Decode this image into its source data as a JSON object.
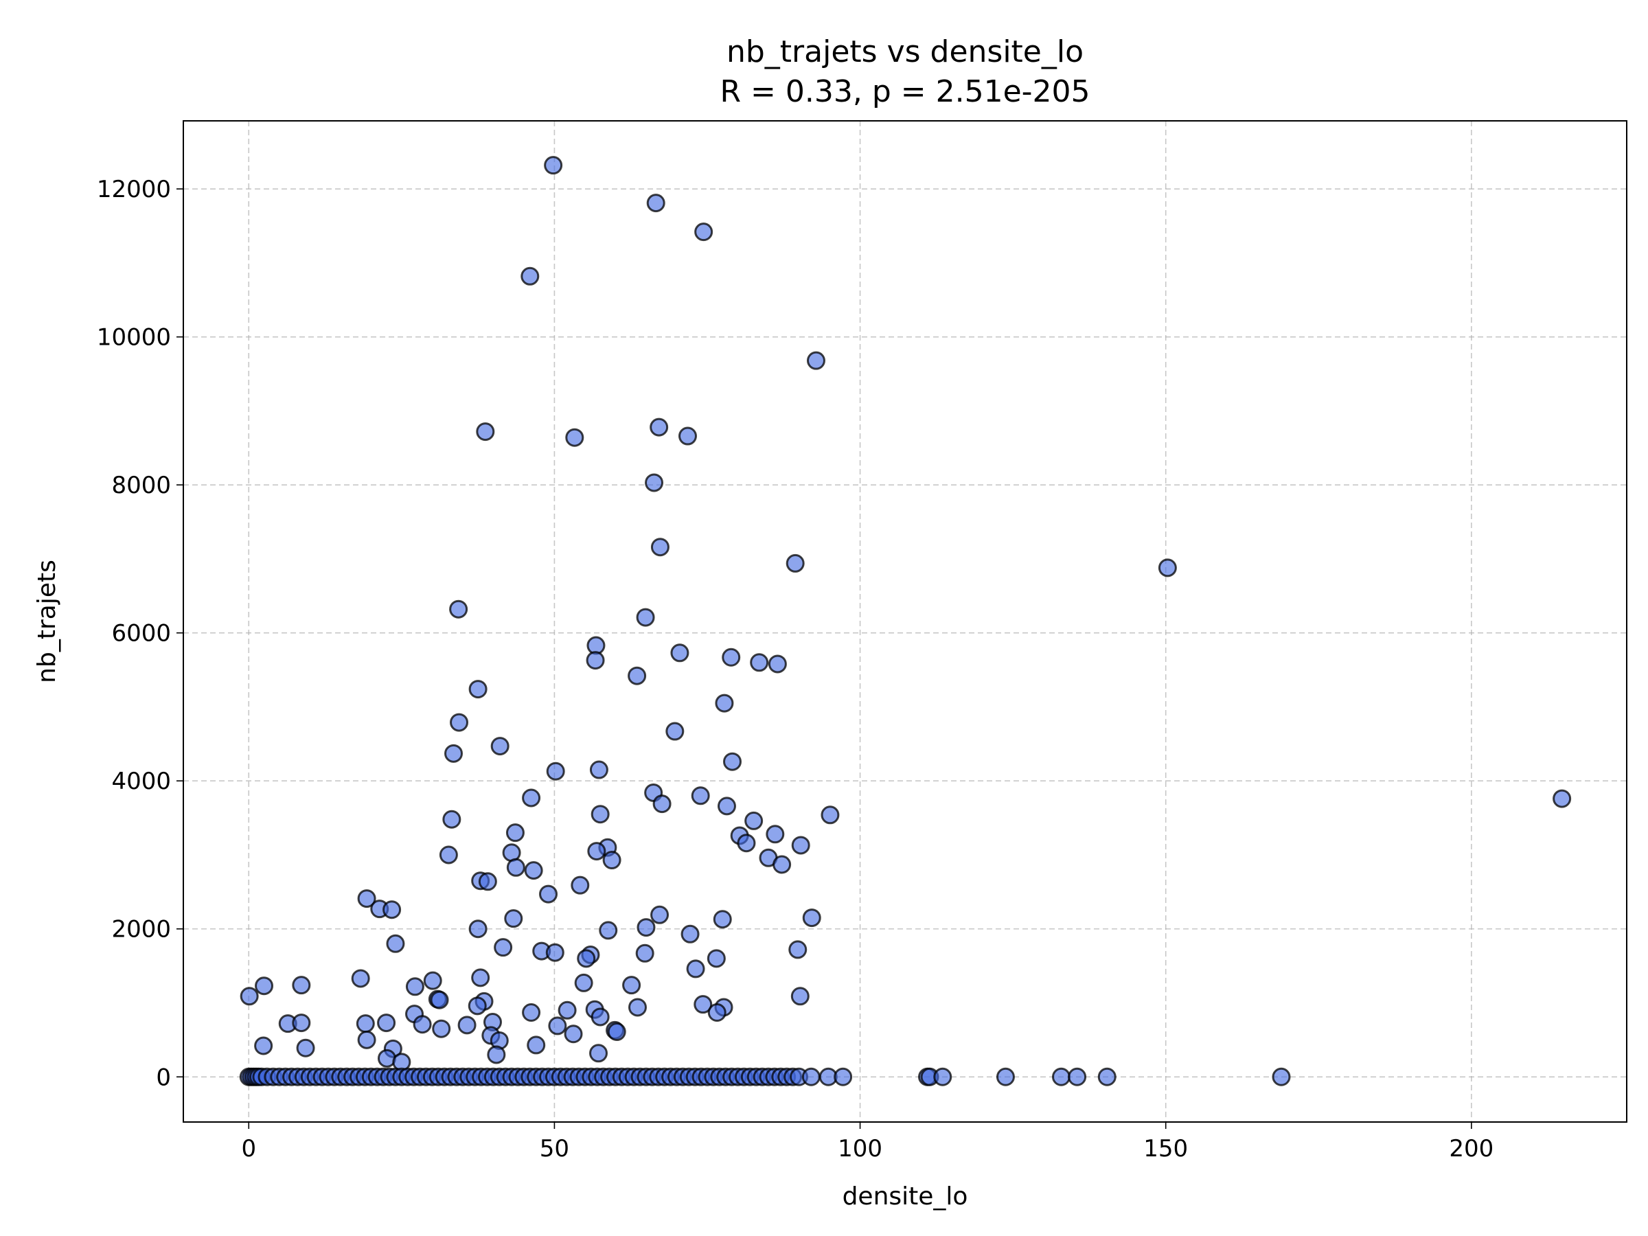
{
  "chart_data": {
    "type": "scatter",
    "title": "nb_trajets vs densite_lo",
    "subtitle": "R = 0.33, p = 2.51e-205",
    "xlabel": "densite_lo",
    "ylabel": "nb_trajets",
    "xlim": [
      -10.7,
      225.4
    ],
    "ylim": [
      -610,
      12920
    ],
    "xticks": [
      0,
      50,
      100,
      150,
      200
    ],
    "yticks": [
      0,
      2000,
      4000,
      6000,
      8000,
      10000,
      12000
    ],
    "grid": true,
    "legend": "none",
    "colors": {
      "fill": "#4169e1",
      "fill_opacity": 0.6,
      "edge": "#000000"
    },
    "points": [
      [
        49.8,
        12320
      ],
      [
        66.6,
        11810
      ],
      [
        74.4,
        11420
      ],
      [
        46.0,
        10820
      ],
      [
        92.8,
        9680
      ],
      [
        38.7,
        8720
      ],
      [
        53.3,
        8640
      ],
      [
        67.1,
        8780
      ],
      [
        71.8,
        8660
      ],
      [
        66.3,
        8030
      ],
      [
        67.3,
        7160
      ],
      [
        89.4,
        6940
      ],
      [
        150.3,
        6880
      ],
      [
        34.3,
        6320
      ],
      [
        64.9,
        6210
      ],
      [
        56.8,
        5830
      ],
      [
        70.5,
        5730
      ],
      [
        56.7,
        5630
      ],
      [
        78.9,
        5670
      ],
      [
        83.5,
        5600
      ],
      [
        86.5,
        5580
      ],
      [
        63.5,
        5420
      ],
      [
        37.5,
        5240
      ],
      [
        77.8,
        5050
      ],
      [
        34.4,
        4790
      ],
      [
        69.7,
        4670
      ],
      [
        41.1,
        4470
      ],
      [
        33.5,
        4370
      ],
      [
        57.3,
        4150
      ],
      [
        50.2,
        4130
      ],
      [
        79.1,
        4260
      ],
      [
        66.2,
        3840
      ],
      [
        73.9,
        3800
      ],
      [
        46.2,
        3770
      ],
      [
        214.8,
        3760
      ],
      [
        67.6,
        3690
      ],
      [
        78.2,
        3660
      ],
      [
        57.5,
        3550
      ],
      [
        95.1,
        3540
      ],
      [
        33.2,
        3480
      ],
      [
        82.6,
        3460
      ],
      [
        43.6,
        3300
      ],
      [
        86.1,
        3280
      ],
      [
        80.3,
        3260
      ],
      [
        81.4,
        3160
      ],
      [
        90.3,
        3130
      ],
      [
        58.7,
        3100
      ],
      [
        56.9,
        3050
      ],
      [
        43.0,
        3030
      ],
      [
        32.7,
        3000
      ],
      [
        85.0,
        2960
      ],
      [
        59.4,
        2930
      ],
      [
        87.2,
        2870
      ],
      [
        43.7,
        2830
      ],
      [
        46.6,
        2790
      ],
      [
        37.9,
        2650
      ],
      [
        39.1,
        2640
      ],
      [
        54.2,
        2590
      ],
      [
        49.0,
        2470
      ],
      [
        19.3,
        2410
      ],
      [
        21.4,
        2270
      ],
      [
        23.4,
        2260
      ],
      [
        67.2,
        2190
      ],
      [
        92.1,
        2150
      ],
      [
        43.3,
        2140
      ],
      [
        77.5,
        2130
      ],
      [
        65.0,
        2020
      ],
      [
        37.5,
        2000
      ],
      [
        58.8,
        1980
      ],
      [
        72.2,
        1930
      ],
      [
        24.0,
        1800
      ],
      [
        41.6,
        1750
      ],
      [
        89.8,
        1720
      ],
      [
        47.9,
        1700
      ],
      [
        50.1,
        1680
      ],
      [
        64.8,
        1670
      ],
      [
        55.9,
        1650
      ],
      [
        55.2,
        1600
      ],
      [
        76.5,
        1600
      ],
      [
        73.1,
        1460
      ],
      [
        18.3,
        1330
      ],
      [
        37.9,
        1340
      ],
      [
        30.1,
        1300
      ],
      [
        54.8,
        1270
      ],
      [
        62.6,
        1240
      ],
      [
        2.5,
        1230
      ],
      [
        8.6,
        1240
      ],
      [
        27.2,
        1220
      ],
      [
        0.1,
        1090
      ],
      [
        30.9,
        1050
      ],
      [
        31.2,
        1040
      ],
      [
        90.2,
        1090
      ],
      [
        38.5,
        1020
      ],
      [
        74.3,
        980
      ],
      [
        37.4,
        960
      ],
      [
        63.6,
        940
      ],
      [
        77.7,
        940
      ],
      [
        56.6,
        910
      ],
      [
        52.1,
        900
      ],
      [
        46.2,
        870
      ],
      [
        76.6,
        870
      ],
      [
        27.1,
        850
      ],
      [
        57.5,
        810
      ],
      [
        6.4,
        720
      ],
      [
        8.6,
        730
      ],
      [
        19.1,
        720
      ],
      [
        22.5,
        730
      ],
      [
        39.9,
        740
      ],
      [
        28.4,
        710
      ],
      [
        35.7,
        700
      ],
      [
        50.5,
        690
      ],
      [
        31.5,
        650
      ],
      [
        59.9,
        630
      ],
      [
        60.2,
        610
      ],
      [
        53.1,
        580
      ],
      [
        39.6,
        560
      ],
      [
        19.3,
        500
      ],
      [
        41.0,
        490
      ],
      [
        2.4,
        420
      ],
      [
        47.0,
        430
      ],
      [
        9.3,
        390
      ],
      [
        23.6,
        380
      ],
      [
        40.5,
        300
      ],
      [
        57.2,
        320
      ],
      [
        22.6,
        250
      ],
      [
        25.0,
        200
      ],
      [
        0,
        0
      ],
      [
        0.4,
        0
      ],
      [
        0.8,
        0
      ],
      [
        1.2,
        0
      ],
      [
        1.6,
        0
      ],
      [
        2.1,
        0
      ],
      [
        3.0,
        0
      ],
      [
        4.0,
        0
      ],
      [
        5.0,
        0
      ],
      [
        6.0,
        0
      ],
      [
        7.0,
        0
      ],
      [
        8.0,
        0
      ],
      [
        9.0,
        0
      ],
      [
        10.0,
        0
      ],
      [
        11.0,
        0
      ],
      [
        12.0,
        0
      ],
      [
        13.0,
        0
      ],
      [
        14.0,
        0
      ],
      [
        15.0,
        0
      ],
      [
        16.0,
        0
      ],
      [
        17.0,
        0
      ],
      [
        18.0,
        0
      ],
      [
        19.0,
        0
      ],
      [
        20.0,
        0
      ],
      [
        21.0,
        0
      ],
      [
        22.0,
        0
      ],
      [
        23.0,
        0
      ],
      [
        24.0,
        0
      ],
      [
        25.0,
        0
      ],
      [
        26.0,
        0
      ],
      [
        27.0,
        0
      ],
      [
        28.0,
        0
      ],
      [
        29.0,
        0
      ],
      [
        30.0,
        0
      ],
      [
        31.0,
        0
      ],
      [
        32.0,
        0
      ],
      [
        33.0,
        0
      ],
      [
        34.0,
        0
      ],
      [
        35.0,
        0
      ],
      [
        36.0,
        0
      ],
      [
        37.0,
        0
      ],
      [
        38.0,
        0
      ],
      [
        39.0,
        0
      ],
      [
        40.0,
        0
      ],
      [
        41.0,
        0
      ],
      [
        42.0,
        0
      ],
      [
        43.0,
        0
      ],
      [
        44.0,
        0
      ],
      [
        45.0,
        0
      ],
      [
        46.0,
        0
      ],
      [
        47.0,
        0
      ],
      [
        48.0,
        0
      ],
      [
        49.0,
        0
      ],
      [
        50.0,
        0
      ],
      [
        51.0,
        0
      ],
      [
        52.0,
        0
      ],
      [
        53.0,
        0
      ],
      [
        54.0,
        0
      ],
      [
        55.0,
        0
      ],
      [
        56.0,
        0
      ],
      [
        57.0,
        0
      ],
      [
        58.0,
        0
      ],
      [
        59.0,
        0
      ],
      [
        60.0,
        0
      ],
      [
        61.0,
        0
      ],
      [
        62.0,
        0
      ],
      [
        63.0,
        0
      ],
      [
        64.0,
        0
      ],
      [
        65.0,
        0
      ],
      [
        66.0,
        0
      ],
      [
        67.0,
        0
      ],
      [
        68.0,
        0
      ],
      [
        69.0,
        0
      ],
      [
        70.0,
        0
      ],
      [
        71.0,
        0
      ],
      [
        72.0,
        0
      ],
      [
        73.0,
        0
      ],
      [
        74.0,
        0
      ],
      [
        75.0,
        0
      ],
      [
        76.0,
        0
      ],
      [
        77.0,
        0
      ],
      [
        78.0,
        0
      ],
      [
        79.0,
        0
      ],
      [
        80.0,
        0
      ],
      [
        81.0,
        0
      ],
      [
        82.0,
        0
      ],
      [
        83.0,
        0
      ],
      [
        84.0,
        0
      ],
      [
        85.0,
        0
      ],
      [
        86.0,
        0
      ],
      [
        87.0,
        0
      ],
      [
        88.0,
        0
      ],
      [
        89.0,
        0
      ],
      [
        90.0,
        0
      ],
      [
        92.0,
        0
      ],
      [
        94.8,
        0
      ],
      [
        97.2,
        0
      ],
      [
        111.0,
        0
      ],
      [
        111.4,
        0
      ],
      [
        113.5,
        0
      ],
      [
        123.8,
        0
      ],
      [
        132.9,
        0
      ],
      [
        135.5,
        0
      ],
      [
        140.4,
        0
      ],
      [
        168.9,
        0
      ]
    ]
  }
}
